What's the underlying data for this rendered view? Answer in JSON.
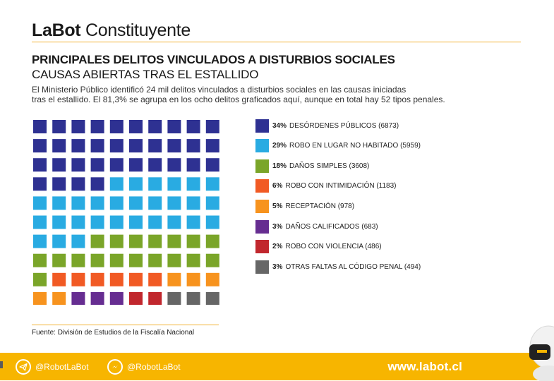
{
  "brand": {
    "bold": "LaBot",
    "light": "Constituyente"
  },
  "title": "PRINCIPALES DELITOS VINCULADOS A DISTURBIOS SOCIALES",
  "subtitle": "CAUSAS ABIERTAS TRAS EL ESTALLIDO",
  "description": {
    "line1": "El Ministerio Público identificó 24 mil delitos vinculados a disturbios sociales en las causas iniciadas",
    "line2": "tras el estallido. El 81,3% se agrupa en los ocho delitos graficados aquí, aunque en total hay 52 tipos penales."
  },
  "source": "Fuente: División de Estudios de la Fiscalía Nacional",
  "footer": {
    "telegram": "@RobotLaBot",
    "messenger": "@RobotLaBot",
    "website": "www.labot.cl",
    "color": "#f7b500"
  },
  "chart_data": {
    "type": "waffle",
    "grid": {
      "rows": 10,
      "cols": 10
    },
    "series": [
      {
        "pct_label": "34%",
        "name": "DESÓRDENES PÚBLICOS (6873)",
        "percent": 34,
        "count": 6873,
        "color": "#2e3192"
      },
      {
        "pct_label": "29%",
        "name": "ROBO EN LUGAR NO HABITADO (5959)",
        "percent": 29,
        "count": 5959,
        "color": "#29abe2"
      },
      {
        "pct_label": "18%",
        "name": "DAÑOS SIMPLES (3608)",
        "percent": 18,
        "count": 3608,
        "color": "#7aa529"
      },
      {
        "pct_label": "6%",
        "name": "ROBO CON INTIMIDACIÓN (1183)",
        "percent": 6,
        "count": 1183,
        "color": "#f15a24"
      },
      {
        "pct_label": "5%",
        "name": "RECEPTACIÓN (978)",
        "percent": 5,
        "count": 978,
        "color": "#f7931e"
      },
      {
        "pct_label": "3%",
        "name": "DAÑOS CALIFICADOS (683)",
        "percent": 3,
        "count": 683,
        "color": "#662d91"
      },
      {
        "pct_label": "2%",
        "name": "ROBO CON VIOLENCIA (486)",
        "percent": 2,
        "count": 486,
        "color": "#c1272d"
      },
      {
        "pct_label": "3%",
        "name": "OTRAS FALTAS AL CÓDIGO PENAL (494)",
        "percent": 3,
        "count": 494,
        "color": "#666666"
      }
    ]
  }
}
